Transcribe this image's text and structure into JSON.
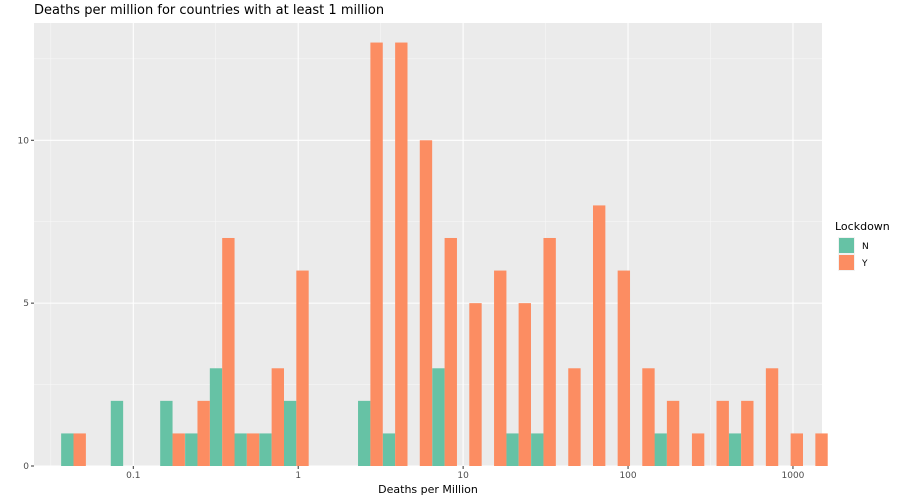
{
  "chart_data": {
    "type": "bar",
    "title": "Deaths per million for countries with at least 1 million",
    "xlabel": "Deaths per Million",
    "ylabel": "",
    "x_scale": "log10",
    "xlim": [
      0.025,
      1500
    ],
    "ylim": [
      0,
      13.6
    ],
    "x_ticks": [
      0.1,
      1,
      10,
      100,
      1000
    ],
    "x_tick_labels": [
      "0.1",
      "1",
      "10",
      "100",
      "1000"
    ],
    "y_ticks": [
      0,
      5,
      10
    ],
    "y_tick_labels": [
      "0",
      "5",
      "10"
    ],
    "grid": true,
    "legend": {
      "title": "Lockdown",
      "position": "right"
    },
    "bin_log_width": 0.15,
    "series": [
      {
        "name": "N",
        "color": "#66c2a5",
        "bins": [
          {
            "x": 0.0434,
            "count": 1
          },
          {
            "x": 0.0868,
            "count": 2
          },
          {
            "x": 0.173,
            "count": 2
          },
          {
            "x": 0.245,
            "count": 1
          },
          {
            "x": 0.346,
            "count": 3
          },
          {
            "x": 0.488,
            "count": 1
          },
          {
            "x": 0.69,
            "count": 1
          },
          {
            "x": 0.974,
            "count": 2
          },
          {
            "x": 2.74,
            "count": 2
          },
          {
            "x": 3.87,
            "count": 1
          },
          {
            "x": 7.72,
            "count": 3
          },
          {
            "x": 21.7,
            "count": 1
          },
          {
            "x": 30.7,
            "count": 1
          },
          {
            "x": 172,
            "count": 1
          },
          {
            "x": 485,
            "count": 1
          }
        ]
      },
      {
        "name": "Y",
        "color": "#fc8d62",
        "bins": [
          {
            "x": 0.0434,
            "count": 1
          },
          {
            "x": 0.173,
            "count": 1
          },
          {
            "x": 0.245,
            "count": 2
          },
          {
            "x": 0.346,
            "count": 7
          },
          {
            "x": 0.488,
            "count": 1
          },
          {
            "x": 0.69,
            "count": 3
          },
          {
            "x": 0.974,
            "count": 6
          },
          {
            "x": 2.74,
            "count": 13
          },
          {
            "x": 3.87,
            "count": 13
          },
          {
            "x": 5.46,
            "count": 10
          },
          {
            "x": 7.72,
            "count": 7
          },
          {
            "x": 10.9,
            "count": 5
          },
          {
            "x": 15.4,
            "count": 6
          },
          {
            "x": 21.7,
            "count": 5
          },
          {
            "x": 30.7,
            "count": 7
          },
          {
            "x": 43.4,
            "count": 3
          },
          {
            "x": 61.3,
            "count": 8
          },
          {
            "x": 86.5,
            "count": 6
          },
          {
            "x": 122,
            "count": 3
          },
          {
            "x": 172,
            "count": 2
          },
          {
            "x": 244,
            "count": 1
          },
          {
            "x": 344,
            "count": 2
          },
          {
            "x": 485,
            "count": 2
          },
          {
            "x": 685,
            "count": 3
          },
          {
            "x": 968,
            "count": 1
          },
          {
            "x": 1367,
            "count": 1
          }
        ]
      }
    ]
  }
}
